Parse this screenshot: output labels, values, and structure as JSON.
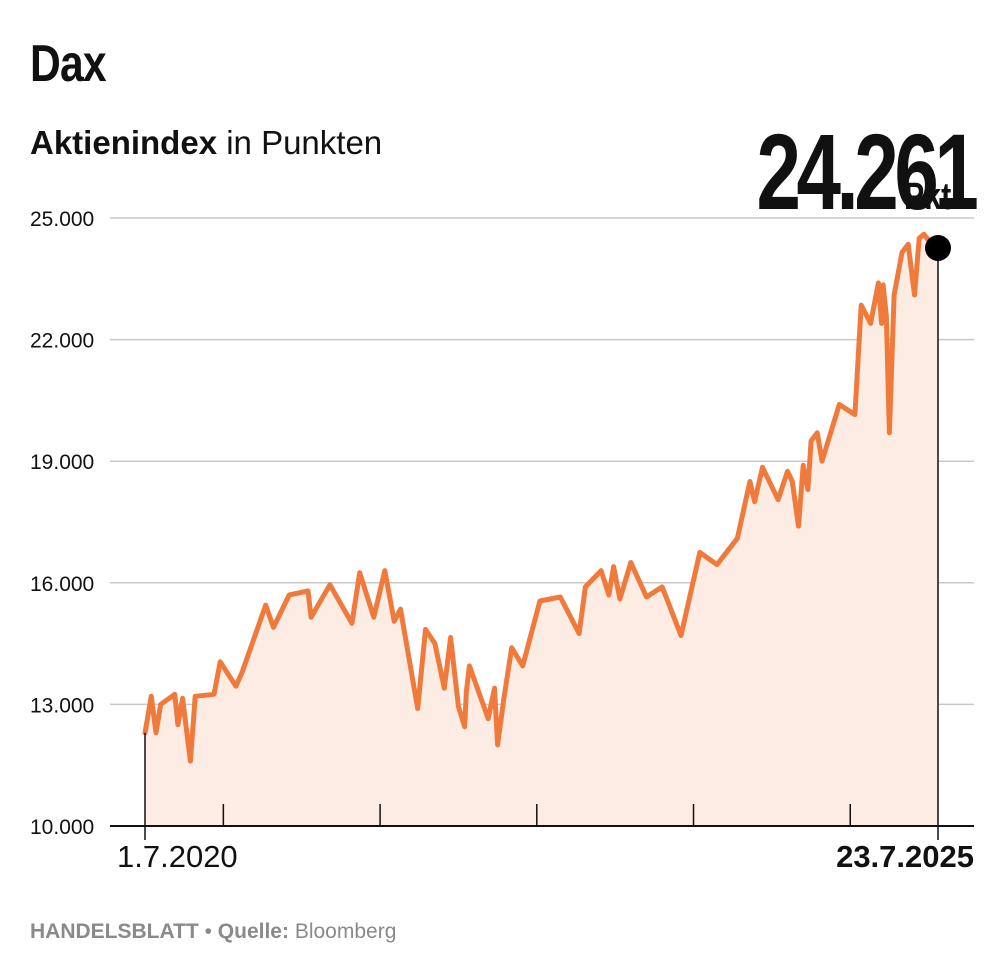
{
  "header": {
    "title": "Dax",
    "subtitle_bold": "Aktienindex",
    "subtitle_rest": " in Punkten"
  },
  "highlight": {
    "value": "24.261",
    "unit": "Pkt."
  },
  "footer": {
    "brand": "HANDELSBLATT",
    "separator": " • ",
    "source_label": "Quelle:",
    "source_name": " Bloomberg"
  },
  "colors": {
    "line": "#f07a3c",
    "area": "#fdece4",
    "grid": "#c8c8c8",
    "axis": "#111111"
  },
  "chart_data": {
    "type": "area",
    "title": "",
    "xlabel": "",
    "ylabel": "",
    "ylim": [
      10000,
      25000
    ],
    "yticks": [
      10000,
      13000,
      16000,
      19000,
      22000,
      25000
    ],
    "ytick_labels": [
      "10.000",
      "13.000",
      "16.000",
      "19.000",
      "22.000",
      "25.000"
    ],
    "x_start_label": "1.7.2020",
    "x_end_label": "23.7.2025",
    "x_range": [
      2020.5,
      2025.56
    ],
    "x_minor_ticks": [
      2021,
      2022,
      2023,
      2024,
      2025
    ],
    "grid": true,
    "series": [
      {
        "x": [
          2020.5,
          2020.54,
          2020.57,
          2020.6,
          2020.69,
          2020.71,
          2020.74,
          2020.79,
          2020.82,
          2020.94,
          2020.98,
          2021.08,
          2021.12,
          2021.27,
          2021.32,
          2021.42,
          2021.54,
          2021.56,
          2021.68,
          2021.82,
          2021.87,
          2021.96,
          2022.03,
          2022.09,
          2022.13,
          2022.24,
          2022.29,
          2022.35,
          2022.41,
          2022.45,
          2022.5,
          2022.54,
          2022.55,
          2022.57,
          2022.69,
          2022.73,
          2022.75,
          2022.79,
          2022.84,
          2022.91,
          2023.02,
          2023.15,
          2023.27,
          2023.31,
          2023.41,
          2023.46,
          2023.49,
          2023.53,
          2023.6,
          2023.7,
          2023.8,
          2023.92,
          2024.04,
          2024.15,
          2024.28,
          2024.36,
          2024.39,
          2024.44,
          2024.54,
          2024.6,
          2024.63,
          2024.67,
          2024.7,
          2024.73,
          2024.75,
          2024.79,
          2024.82,
          2024.93,
          2025.03,
          2025.07,
          2025.13,
          2025.18,
          2025.2,
          2025.21,
          2025.23,
          2025.25,
          2025.28,
          2025.33,
          2025.37,
          2025.41,
          2025.44,
          2025.47,
          2025.52,
          2025.56
        ],
        "values": [
          12300,
          13200,
          12300,
          13000,
          13250,
          12500,
          13150,
          11600,
          13200,
          13250,
          14050,
          13450,
          13800,
          15450,
          14900,
          15700,
          15800,
          15150,
          15950,
          15000,
          16250,
          15150,
          16300,
          15050,
          15350,
          12900,
          14850,
          14500,
          13400,
          14650,
          12950,
          12450,
          13300,
          13950,
          12650,
          13400,
          12000,
          13150,
          14400,
          13950,
          15550,
          15650,
          14750,
          15900,
          16300,
          15700,
          16400,
          15600,
          16500,
          15650,
          15900,
          14700,
          16750,
          16450,
          17100,
          18500,
          18000,
          18850,
          18050,
          18750,
          18500,
          17400,
          18900,
          18300,
          19500,
          19700,
          19000,
          20400,
          20150,
          22850,
          22400,
          23400,
          22400,
          23350,
          22600,
          19700,
          23100,
          24150,
          24350,
          23100,
          24500,
          24600,
          24350,
          24261
        ]
      }
    ],
    "end_marker_value": 24261
  }
}
